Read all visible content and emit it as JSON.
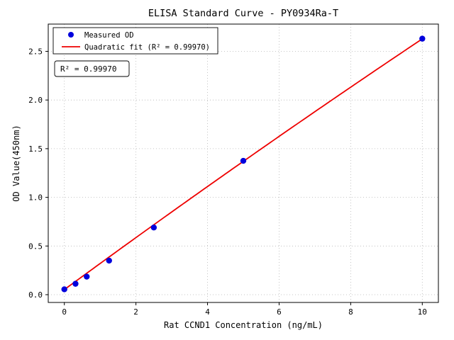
{
  "figure": {
    "background": "#ffffff"
  },
  "chart_data": {
    "type": "scatter",
    "title": "ELISA Standard Curve - PY0934Ra-T",
    "xlabel": "Rat CCND1 Concentration (ng/mL)",
    "ylabel": "OD Value(450nm)",
    "xlim": [
      -0.45,
      10.45
    ],
    "ylim": [
      -0.08,
      2.78
    ],
    "xticks": [
      0,
      2,
      4,
      6,
      8,
      10
    ],
    "yticks": [
      0.0,
      0.5,
      1.0,
      1.5,
      2.0,
      2.5
    ],
    "grid": true,
    "grid_style": "dotted",
    "grid_color": "#b5b5b5",
    "legend_position": "upper-left",
    "annotation": "R² = 0.99970",
    "series": [
      {
        "name": "Measured OD",
        "kind": "scatter",
        "color": "#0000dd",
        "x": [
          0,
          0.312,
          0.625,
          1.25,
          2.5,
          5,
          10
        ],
        "y": [
          0.055,
          0.112,
          0.185,
          0.35,
          0.69,
          1.375,
          2.63
        ]
      },
      {
        "name": "Quadratic fit (R² = 0.99970)",
        "kind": "line",
        "color": "#ee0000",
        "fit": {
          "a": 0.052,
          "b": 0.2695,
          "c": -0.00119
        },
        "x_range": [
          0,
          10
        ]
      }
    ]
  }
}
